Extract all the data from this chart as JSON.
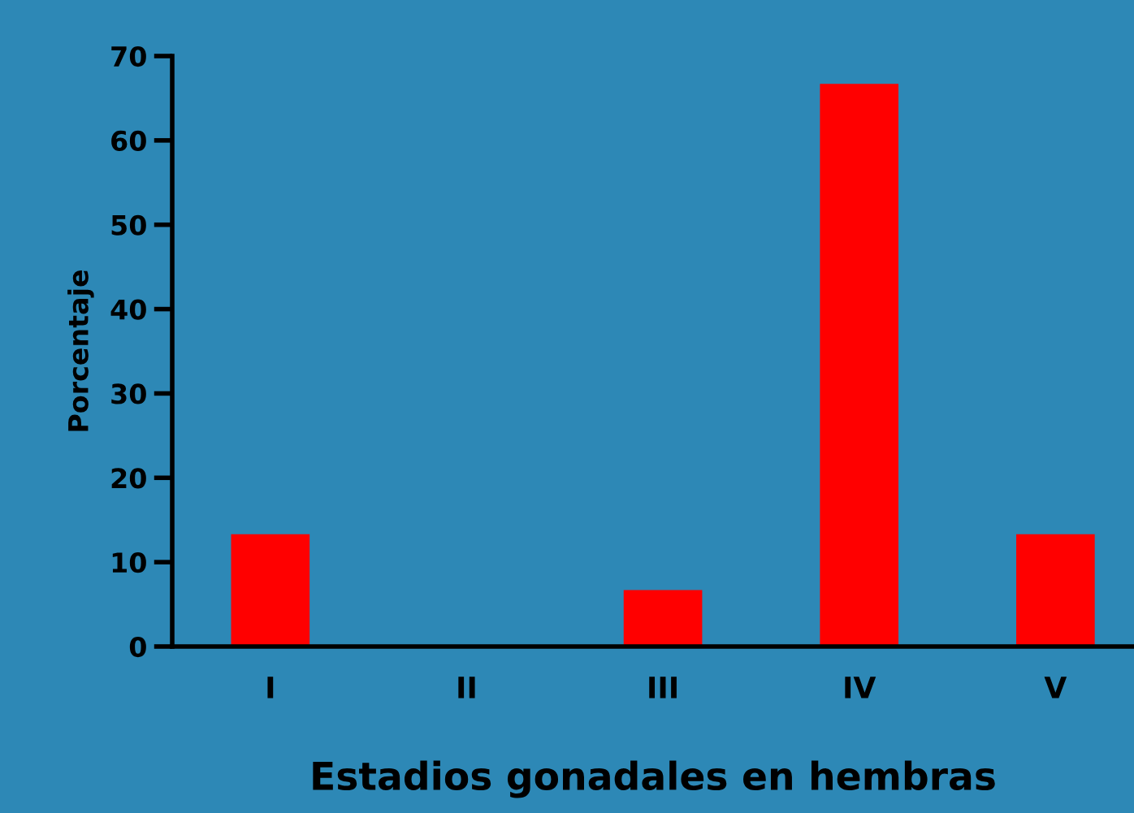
{
  "chart_data": {
    "type": "bar",
    "xlabel": "Estadios gonadales en hembras",
    "ylabel": "Porcentaje",
    "categories": [
      "I",
      "II",
      "III",
      "IV",
      "V"
    ],
    "values": [
      13.3,
      0,
      6.7,
      66.7,
      13.3
    ],
    "color": "#ff0000",
    "ylim": [
      0,
      70
    ],
    "yticks": [
      0,
      10,
      20,
      30,
      40,
      50,
      60,
      70
    ],
    "grid": false
  }
}
